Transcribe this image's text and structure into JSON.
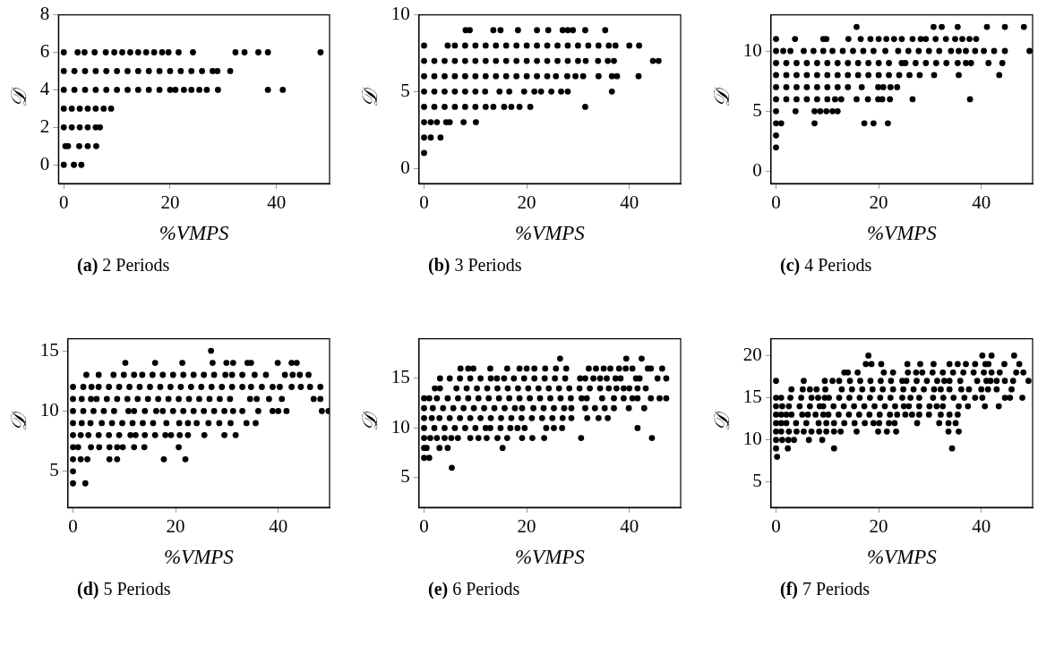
{
  "chart_data": [
    {
      "type": "scatter",
      "title": "(a) 2 Periods",
      "xlabel": "%VMPS",
      "ylabel": "𝒟",
      "xlim": [
        -1,
        50
      ],
      "ylim": [
        -1,
        8
      ],
      "xticks": [
        0,
        20,
        40
      ],
      "yticks": [
        0,
        2,
        4,
        6,
        8
      ],
      "marker": "circle",
      "series": [
        {
          "color": "#000000",
          "x": [
            0,
            2.6,
            3.9,
            5.8,
            7.9,
            9.5,
            11,
            12.5,
            14,
            15.5,
            17,
            18.5,
            19.7,
            21.6,
            24.3,
            32.3,
            34,
            36.6,
            38.4,
            48.3
          ],
          "values": [
            6,
            6,
            6,
            6,
            6,
            6,
            6,
            6,
            6,
            6,
            6,
            6,
            6,
            6,
            6,
            6,
            6,
            6,
            6,
            6
          ]
        },
        {
          "color": "#000000",
          "x": [
            0,
            2,
            4,
            6,
            8,
            10,
            12,
            14,
            16,
            18,
            20,
            22,
            24,
            26,
            28,
            28.9,
            31.3
          ],
          "values": [
            5,
            5,
            5,
            5,
            5,
            5,
            5,
            5,
            5,
            5,
            5,
            5,
            5,
            5,
            5,
            5,
            5
          ]
        },
        {
          "color": "#000000",
          "x": [
            0,
            2,
            4,
            6,
            8,
            10,
            12,
            14,
            16,
            18,
            20,
            21,
            22.6,
            24,
            25.5,
            26.9,
            29,
            38.4,
            41.2
          ],
          "values": [
            4,
            4,
            4,
            4,
            4,
            4,
            4,
            4,
            4,
            4,
            4,
            4,
            4,
            4,
            4,
            4,
            4,
            4,
            4
          ]
        },
        {
          "color": "#000000",
          "x": [
            0,
            1.5,
            3,
            4.5,
            6,
            7.5,
            8.9
          ],
          "values": [
            3,
            3,
            3,
            3,
            3,
            3,
            3
          ]
        },
        {
          "color": "#000000",
          "x": [
            0,
            1.5,
            3,
            4.5,
            6,
            6.8
          ],
          "values": [
            2,
            2,
            2,
            2,
            2,
            2
          ]
        },
        {
          "color": "#000000",
          "x": [
            0.3,
            0.8,
            2.9,
            4.5,
            6.1
          ],
          "values": [
            1,
            1,
            1,
            1,
            1
          ]
        },
        {
          "color": "#000000",
          "x": [
            0,
            1.9,
            3.3
          ],
          "values": [
            0,
            0,
            0
          ]
        }
      ]
    },
    {
      "type": "scatter",
      "title": "(b) 3 Periods",
      "xlabel": "%VMPS",
      "ylabel": "𝒟",
      "xlim": [
        -1,
        50
      ],
      "ylim": [
        -1,
        10
      ],
      "xticks": [
        0,
        20,
        40
      ],
      "yticks": [
        0,
        5,
        10
      ],
      "marker": "circle",
      "series": [
        {
          "color": "#000000",
          "x": [
            8.1,
            8.9,
            13.5,
            14.9,
            18.3,
            22,
            24.2,
            27,
            28,
            29,
            31.4,
            35.3
          ],
          "values": [
            9,
            9,
            9,
            9,
            9,
            9,
            9,
            9,
            9,
            9,
            9,
            9
          ]
        },
        {
          "color": "#000000",
          "x": [
            0,
            4.6,
            6,
            8,
            10,
            12,
            14,
            16,
            18,
            20,
            22,
            24,
            26,
            28,
            30,
            32,
            34,
            36,
            37.3,
            40,
            41.9
          ],
          "values": [
            8,
            8,
            8,
            8,
            8,
            8,
            8,
            8,
            8,
            8,
            8,
            8,
            8,
            8,
            8,
            8,
            8,
            8,
            8,
            8,
            8
          ]
        },
        {
          "color": "#000000",
          "x": [
            0,
            2,
            4,
            6,
            8,
            10,
            12,
            14,
            16,
            18,
            20,
            22,
            24,
            26,
            28,
            30,
            31.5,
            33.9,
            35.8,
            37,
            44.6,
            45.7
          ],
          "values": [
            7,
            7,
            7,
            7,
            7,
            7,
            7,
            7,
            7,
            7,
            7,
            7,
            7,
            7,
            7,
            7,
            7,
            7,
            7,
            7,
            7,
            7
          ]
        },
        {
          "color": "#000000",
          "x": [
            0,
            2,
            4,
            6,
            8,
            10,
            12,
            14,
            16,
            18,
            20,
            22,
            24,
            25.7,
            27.9,
            29.5,
            31,
            34,
            36.6,
            37.6,
            41.8
          ],
          "values": [
            6,
            6,
            6,
            6,
            6,
            6,
            6,
            6,
            6,
            6,
            6,
            6,
            6,
            6,
            6,
            6,
            6,
            6,
            6,
            6,
            6
          ]
        },
        {
          "color": "#000000",
          "x": [
            0,
            2,
            4,
            6,
            8,
            10,
            11.9,
            14.7,
            16.6,
            19.5,
            21.5,
            22.8,
            24.8,
            26.7,
            28,
            36.6
          ],
          "values": [
            5,
            5,
            5,
            5,
            5,
            5,
            5,
            5,
            5,
            5,
            5,
            5,
            5,
            5,
            5,
            5
          ]
        },
        {
          "color": "#000000",
          "x": [
            0,
            2,
            4,
            6,
            8,
            10,
            12,
            13.5,
            15.6,
            17,
            18.6,
            20.7,
            31.4
          ],
          "values": [
            4,
            4,
            4,
            4,
            4,
            4,
            4,
            4,
            4,
            4,
            4,
            4,
            4
          ]
        },
        {
          "color": "#000000",
          "x": [
            0,
            1.3,
            2.5,
            4.3,
            5,
            7.7,
            10.1
          ],
          "values": [
            3,
            3,
            3,
            3,
            3,
            3,
            3
          ]
        },
        {
          "color": "#000000",
          "x": [
            0,
            1.3,
            3.2
          ],
          "values": [
            2,
            2,
            2
          ]
        },
        {
          "color": "#000000",
          "x": [
            0
          ],
          "values": [
            1
          ]
        }
      ]
    },
    {
      "type": "scatter",
      "title": "(c) 4 Periods",
      "xlabel": "%VMPS",
      "ylabel": "𝒟",
      "xlim": [
        -1,
        50
      ],
      "ylim": [
        -1,
        13
      ],
      "xticks": [
        0,
        20,
        40
      ],
      "yticks": [
        0,
        5,
        10
      ],
      "marker": "circle",
      "series": [
        {
          "color": "#000000",
          "x": [
            15.7,
            30.7,
            32.3,
            35.4,
            41.1,
            44.6,
            48.3
          ],
          "values": [
            12,
            12,
            12,
            12,
            12,
            12,
            12
          ]
        },
        {
          "color": "#000000",
          "x": [
            0,
            3.7,
            9.2,
            9.8,
            14.1,
            16.5,
            18.4,
            20,
            21.5,
            23,
            24.5,
            26.6,
            28.2,
            29.2,
            31.1,
            33.1,
            34.9,
            36.3,
            37.7,
            39
          ],
          "values": [
            11,
            11,
            11,
            11,
            11,
            11,
            11,
            11,
            11,
            11,
            11,
            11,
            11,
            11,
            11,
            11,
            11,
            11,
            11,
            11
          ]
        },
        {
          "color": "#000000",
          "x": [
            0,
            1.4,
            2.8,
            5.4,
            7.3,
            9.2,
            11,
            13,
            15,
            17,
            19,
            21.3,
            23.8,
            25.8,
            27.8,
            29.8,
            31.8,
            34.1,
            35.6,
            37,
            38.8,
            40.5,
            42.5,
            44.6,
            49.4
          ],
          "values": [
            10,
            10,
            10,
            10,
            10,
            10,
            10,
            10,
            10,
            10,
            10,
            10,
            10,
            10,
            10,
            10,
            10,
            10,
            10,
            10,
            10,
            10,
            10,
            10,
            10
          ]
        },
        {
          "color": "#000000",
          "x": [
            0,
            2,
            4,
            6,
            8,
            10,
            12,
            14,
            16,
            18,
            20,
            22,
            24.5,
            25.2,
            27.2,
            29.2,
            31.2,
            33.2,
            35.4,
            37,
            38,
            41.4,
            44.1
          ],
          "values": [
            9,
            9,
            9,
            9,
            9,
            9,
            9,
            9,
            9,
            9,
            9,
            9,
            9,
            9,
            9,
            9,
            9,
            9,
            9,
            9,
            9,
            9,
            9
          ]
        },
        {
          "color": "#000000",
          "x": [
            0,
            2,
            4,
            6,
            8,
            10,
            12,
            14,
            16,
            18,
            20,
            22,
            24,
            26,
            28,
            30.8,
            35.6,
            43.5
          ],
          "values": [
            8,
            8,
            8,
            8,
            8,
            8,
            8,
            8,
            8,
            8,
            8,
            8,
            8,
            8,
            8,
            8,
            8,
            8
          ]
        },
        {
          "color": "#000000",
          "x": [
            0,
            2,
            4,
            6,
            8,
            10,
            12,
            14,
            16.7,
            19.9,
            20.9,
            22.3,
            23.6
          ],
          "values": [
            7,
            7,
            7,
            7,
            7,
            7,
            7,
            7,
            7,
            7,
            7,
            7,
            7
          ]
        },
        {
          "color": "#000000",
          "x": [
            0,
            2,
            4,
            6,
            8,
            10,
            11.5,
            12.7,
            15.7,
            17.9,
            19.9,
            20.7,
            22.2,
            26.6,
            37.8
          ],
          "values": [
            6,
            6,
            6,
            6,
            6,
            6,
            6,
            6,
            6,
            6,
            6,
            6,
            6,
            6,
            6
          ]
        },
        {
          "color": "#000000",
          "x": [
            0,
            3.8,
            7.5,
            8.6,
            9.8,
            11,
            12
          ],
          "values": [
            5,
            5,
            5,
            5,
            5,
            5,
            5
          ]
        },
        {
          "color": "#000000",
          "x": [
            0,
            1,
            7.5,
            17.2,
            19,
            21.8
          ],
          "values": [
            4,
            4,
            4,
            4,
            4,
            4
          ]
        },
        {
          "color": "#000000",
          "x": [
            0,
            0
          ],
          "values": [
            3,
            2
          ]
        }
      ]
    },
    {
      "type": "scatter",
      "title": "(d) 5 Periods",
      "xlabel": "%VMPS",
      "ylabel": "𝒟",
      "xlim": [
        -1,
        50
      ],
      "ylim": [
        2,
        16
      ],
      "xticks": [
        0,
        20,
        40
      ],
      "yticks": [
        5,
        10,
        15
      ],
      "marker": "circle",
      "series": [
        {
          "color": "#000000",
          "x": [
            26.9
          ],
          "values": [
            15
          ]
        },
        {
          "color": "#000000",
          "x": [
            10.2,
            16,
            21.3,
            27.2,
            29.9,
            31.2,
            34,
            34.7,
            39.9,
            42.6,
            43.6
          ],
          "values": [
            14,
            14,
            14,
            14,
            14,
            14,
            14,
            14,
            14,
            14,
            14
          ]
        },
        {
          "color": "#000000",
          "x": [
            2.6,
            5,
            7.9,
            9.9,
            11.9,
            13.5,
            15.5,
            17.5,
            19.5,
            21.5,
            23.5,
            25.5,
            27.5,
            29.7,
            31,
            33,
            35.4,
            37.6,
            41.3,
            42.8,
            44.2,
            45.9
          ],
          "values": [
            13,
            13,
            13,
            13,
            13,
            13,
            13,
            13,
            13,
            13,
            13,
            13,
            13,
            13,
            13,
            13,
            13,
            13,
            13,
            13,
            13,
            13
          ]
        },
        {
          "color": "#000000",
          "x": [
            0,
            2,
            3.6,
            5,
            7,
            9,
            11,
            13,
            15,
            17,
            19,
            21,
            23,
            25,
            27,
            29,
            31,
            33,
            34.7,
            36.8,
            38.9,
            40.3,
            42.6,
            44.4,
            46.2,
            48.2
          ],
          "values": [
            12,
            12,
            12,
            12,
            12,
            12,
            12,
            12,
            12,
            12,
            12,
            12,
            12,
            12,
            12,
            12,
            12,
            12,
            12,
            12,
            12,
            12,
            12,
            12,
            12,
            12
          ]
        },
        {
          "color": "#000000",
          "x": [
            0,
            1.7,
            3.5,
            4.6,
            6.6,
            8.6,
            10.6,
            12.6,
            14.6,
            16.6,
            18.6,
            20.6,
            22.6,
            24.6,
            26.6,
            28.6,
            30.6,
            34.5,
            35.8,
            38.2,
            40.7,
            46.9,
            48.2
          ],
          "values": [
            11,
            11,
            11,
            11,
            11,
            11,
            11,
            11,
            11,
            11,
            11,
            11,
            11,
            11,
            11,
            11,
            11,
            11,
            11,
            11,
            11,
            11,
            11
          ]
        },
        {
          "color": "#000000",
          "x": [
            0,
            2,
            4,
            6,
            8,
            10.8,
            11.9,
            14,
            16.2,
            17.5,
            19.5,
            21.5,
            23.5,
            25.5,
            27.5,
            29.5,
            31.2,
            33,
            36.1,
            38.9,
            40,
            41.6,
            48.5,
            49.8
          ],
          "values": [
            10,
            10,
            10,
            10,
            10,
            10,
            10,
            10,
            10,
            10,
            10,
            10,
            10,
            10,
            10,
            10,
            10,
            10,
            10,
            10,
            10,
            10,
            10,
            10
          ]
        },
        {
          "color": "#000000",
          "x": [
            0,
            1.7,
            3.4,
            5.6,
            7.6,
            9.6,
            11.6,
            13.6,
            15.6,
            18.2,
            20.7,
            22.4,
            24.1,
            26.4,
            28.5,
            30.7,
            33.8,
            35.6
          ],
          "values": [
            9,
            9,
            9,
            9,
            9,
            9,
            9,
            9,
            9,
            9,
            9,
            9,
            9,
            9,
            9,
            9,
            9,
            9
          ]
        },
        {
          "color": "#000000",
          "x": [
            0,
            1.5,
            3,
            5,
            7,
            9,
            11.2,
            12.2,
            14,
            16,
            18,
            19.1,
            20.8,
            22.4,
            25.6,
            29.5,
            31.7
          ],
          "values": [
            8,
            8,
            8,
            8,
            8,
            8,
            8,
            8,
            8,
            8,
            8,
            8,
            8,
            8,
            8,
            8,
            8
          ]
        },
        {
          "color": "#000000",
          "x": [
            0,
            1,
            3.5,
            5.1,
            7.1,
            8.6,
            9.7,
            11.9,
            13.9,
            20.6
          ],
          "values": [
            7,
            7,
            7,
            7,
            7,
            7,
            7,
            7,
            7,
            7
          ]
        },
        {
          "color": "#000000",
          "x": [
            0,
            1.5,
            2.8,
            7.1,
            8.6,
            17.7,
            21.9
          ],
          "values": [
            6,
            6,
            6,
            6,
            6,
            6,
            6
          ]
        },
        {
          "color": "#000000",
          "x": [
            0,
            0,
            2.4
          ],
          "values": [
            5,
            4,
            4
          ]
        }
      ]
    },
    {
      "type": "scatter",
      "title": "(e) 6 Periods",
      "xlabel": "%VMPS",
      "ylabel": "𝒟",
      "xlim": [
        -1,
        50
      ],
      "ylim": [
        2,
        19
      ],
      "xticks": [
        0,
        20,
        40
      ],
      "yticks": [
        5,
        10,
        15
      ],
      "marker": "circle",
      "series": [
        {
          "color": "#000000",
          "x": [
            26.5,
            39.4,
            42.4
          ],
          "values": [
            17,
            17,
            17
          ]
        },
        {
          "color": "#000000",
          "x": [
            7.1,
            8.6,
            9.6,
            12.9,
            16.2,
            18.6,
            20,
            21.5,
            23.6,
            25.7,
            27.7,
            32.1,
            33.5,
            35,
            36.3,
            38,
            39.3,
            40.6,
            43.6,
            44.2,
            46.4
          ],
          "values": [
            16,
            16,
            16,
            16,
            16,
            16,
            16,
            16,
            16,
            16,
            16,
            16,
            16,
            16,
            16,
            16,
            16,
            16,
            16,
            16,
            16
          ]
        },
        {
          "color": "#000000",
          "x": [
            3.1,
            5,
            7,
            9,
            11,
            13,
            14.2,
            15.6,
            17.5,
            19.5,
            21.5,
            23.5,
            25.5,
            27.5,
            30.4,
            31.4,
            33,
            34.3,
            35.6,
            37.3,
            38.3,
            41.3,
            42,
            45.5,
            47.2
          ],
          "values": [
            15,
            15,
            15,
            15,
            15,
            15,
            15,
            15,
            15,
            15,
            15,
            15,
            15,
            15,
            15,
            15,
            15,
            15,
            15,
            15,
            15,
            15,
            15,
            15,
            15
          ]
        },
        {
          "color": "#000000",
          "x": [
            2.1,
            3.1,
            6.3,
            8.3,
            10.3,
            12.3,
            14.3,
            16.3,
            18.3,
            20.3,
            22.3,
            24.3,
            26.3,
            28.3,
            30.3,
            32.3,
            34.3,
            36,
            37.5,
            38.9,
            40,
            41.6,
            43.2
          ],
          "values": [
            14,
            14,
            14,
            14,
            14,
            14,
            14,
            14,
            14,
            14,
            14,
            14,
            14,
            14,
            14,
            14,
            14,
            14,
            14,
            14,
            14,
            14,
            14
          ]
        },
        {
          "color": "#000000",
          "x": [
            0,
            1,
            2.5,
            4.6,
            6.6,
            8.6,
            10.6,
            12.6,
            14.6,
            16.6,
            18.6,
            20.6,
            22.6,
            24.6,
            26.6,
            28.6,
            30.7,
            31.7,
            34.7,
            37,
            38.9,
            40.6,
            41.6,
            44.2,
            45.9,
            47.2
          ],
          "values": [
            13,
            13,
            13,
            13,
            13,
            13,
            13,
            13,
            13,
            13,
            13,
            13,
            13,
            13,
            13,
            13,
            13,
            13,
            13,
            13,
            13,
            13,
            13,
            13,
            13,
            13
          ]
        },
        {
          "color": "#000000",
          "x": [
            0,
            1.7,
            3.7,
            5.7,
            7.7,
            9.7,
            11.7,
            13.7,
            15.7,
            17.7,
            19.1,
            21.3,
            23.3,
            25.3,
            27.3,
            28.7,
            31.4,
            33.3,
            35.2,
            37,
            39.9,
            42.9
          ],
          "values": [
            12,
            12,
            12,
            12,
            12,
            12,
            12,
            12,
            12,
            12,
            12,
            12,
            12,
            12,
            12,
            12,
            12,
            12,
            12,
            12,
            12,
            12
          ]
        },
        {
          "color": "#000000",
          "x": [
            0,
            1.5,
            3,
            5,
            7,
            9,
            11,
            13,
            15,
            17,
            19,
            21,
            23,
            25,
            27,
            28.7,
            31.8,
            34,
            35.8
          ],
          "values": [
            11,
            11,
            11,
            11,
            11,
            11,
            11,
            11,
            11,
            11,
            11,
            11,
            11,
            11,
            11,
            11,
            11,
            11,
            11
          ]
        },
        {
          "color": "#000000",
          "x": [
            0,
            2,
            4,
            6,
            8,
            10,
            12,
            12.9,
            14.9,
            16.8,
            18.2,
            19.6,
            23.8,
            25.3,
            26.9,
            41.6
          ],
          "values": [
            10,
            10,
            10,
            10,
            10,
            10,
            10,
            10,
            10,
            10,
            10,
            10,
            10,
            10,
            10,
            10
          ]
        },
        {
          "color": "#000000",
          "x": [
            0,
            1.2,
            2.5,
            4,
            5.3,
            6.6,
            9,
            10.6,
            12.2,
            14.3,
            16.2,
            19.1,
            21.1,
            23.4,
            30.6,
            44.4
          ],
          "values": [
            9,
            9,
            9,
            9,
            9,
            9,
            9,
            9,
            9,
            9,
            9,
            9,
            9,
            9,
            9,
            9
          ]
        },
        {
          "color": "#000000",
          "x": [
            0,
            0.5,
            3,
            4.6,
            15.3
          ],
          "values": [
            8,
            8,
            8,
            8,
            8
          ]
        },
        {
          "color": "#000000",
          "x": [
            0,
            1,
            5.4
          ],
          "values": [
            7,
            7,
            6
          ]
        }
      ]
    },
    {
      "type": "scatter",
      "title": "(f) 7 Periods",
      "xlabel": "%VMPS",
      "ylabel": "𝒟",
      "xlim": [
        -1,
        50
      ],
      "ylim": [
        2,
        22
      ],
      "xticks": [
        0,
        20,
        40
      ],
      "yticks": [
        5,
        10,
        15,
        20
      ],
      "marker": "circle",
      "series": [
        {
          "color": "#000000",
          "x": [
            18,
            40.2,
            42,
            46.4
          ],
          "values": [
            20,
            20,
            20,
            20
          ]
        },
        {
          "color": "#000000",
          "x": [
            17.5,
            18.6,
            20.5,
            25.6,
            28.1,
            30.7,
            33.8,
            35.4,
            37,
            38.8,
            40.8,
            41.4,
            44.5,
            47.4
          ],
          "values": [
            19,
            19,
            19,
            19,
            19,
            19,
            19,
            19,
            19,
            19,
            19,
            19,
            19,
            19
          ]
        },
        {
          "color": "#000000",
          "x": [
            13.3,
            14,
            15.9,
            21,
            22.8,
            25.7,
            27.3,
            28.5,
            30.5,
            32.5,
            34.5,
            36.5,
            38.5,
            40.5,
            42,
            43.6,
            46.8,
            48.2
          ],
          "values": [
            18,
            18,
            18,
            18,
            18,
            18,
            18,
            18,
            18,
            18,
            18,
            18,
            18,
            18,
            18,
            18,
            18,
            18
          ]
        },
        {
          "color": "#000000",
          "x": [
            0,
            5.4,
            9.5,
            11,
            12.3,
            14.4,
            16.4,
            18.4,
            20.4,
            22.4,
            24.6,
            25.4,
            27.4,
            29.4,
            31.4,
            32.8,
            33.8,
            35.9,
            39.2,
            41,
            41.8,
            43,
            44.6,
            46.2,
            49.2
          ],
          "values": [
            17,
            17,
            17,
            17,
            17,
            17,
            17,
            17,
            17,
            17,
            17,
            17,
            17,
            17,
            17,
            17,
            17,
            17,
            17,
            17,
            17,
            17,
            17,
            17,
            17
          ]
        },
        {
          "color": "#000000",
          "x": [
            3,
            5.2,
            6.6,
            7.9,
            9.6,
            12.8,
            14.8,
            16.8,
            18.8,
            20.8,
            22.8,
            24.8,
            26.8,
            28.8,
            30.8,
            32.1,
            33.8,
            36.1,
            37.6,
            40,
            41.3,
            43,
            45.9
          ],
          "values": [
            16,
            16,
            16,
            16,
            16,
            16,
            16,
            16,
            16,
            16,
            16,
            16,
            16,
            16,
            16,
            16,
            16,
            16,
            16,
            16,
            16,
            16,
            16
          ]
        },
        {
          "color": "#000000",
          "x": [
            0,
            1,
            2.8,
            4.9,
            6.9,
            8.2,
            9.5,
            10.3,
            12.3,
            14.3,
            16.3,
            18.3,
            20.3,
            22.3,
            24.6,
            26.2,
            27.9,
            30.6,
            32.6,
            34.6,
            36.7,
            38.8,
            40.2,
            44.6,
            45.6,
            48
          ],
          "values": [
            15,
            15,
            15,
            15,
            15,
            15,
            15,
            15,
            15,
            15,
            15,
            15,
            15,
            15,
            15,
            15,
            15,
            15,
            15,
            15,
            15,
            15,
            15,
            15,
            15,
            15
          ]
        },
        {
          "color": "#000000",
          "x": [
            0,
            1.2,
            2.5,
            4.6,
            6.6,
            8.5,
            9.2,
            11.2,
            13.2,
            15.2,
            17.2,
            19.2,
            21.2,
            23.2,
            24.9,
            25.9,
            27.9,
            29.9,
            31.3,
            32.5,
            35.6,
            37.4,
            40.7,
            43.4
          ],
          "values": [
            14,
            14,
            14,
            14,
            14,
            14,
            14,
            14,
            14,
            14,
            14,
            14,
            14,
            14,
            14,
            14,
            14,
            14,
            14,
            14,
            14,
            14,
            14,
            14
          ]
        },
        {
          "color": "#000000",
          "x": [
            0,
            1,
            2,
            3,
            5.1,
            6.2,
            7.7,
            9.2,
            10.2,
            12.2,
            14.2,
            16.2,
            18.2,
            20.2,
            22.2,
            23.6,
            25.2,
            26.5,
            27.9,
            29.8,
            32.1,
            33.8,
            35.4
          ],
          "values": [
            13,
            13,
            13,
            13,
            13,
            13,
            13,
            13,
            13,
            13,
            13,
            13,
            13,
            13,
            13,
            13,
            13,
            13,
            13,
            13,
            13,
            13,
            13
          ]
        },
        {
          "color": "#000000",
          "x": [
            0,
            1,
            2,
            3.9,
            5.9,
            8.3,
            9.8,
            11.3,
            13.3,
            15.3,
            17.3,
            19,
            20.1,
            22,
            23.1,
            27.5,
            31.8,
            33.6,
            35
          ],
          "values": [
            12,
            12,
            12,
            12,
            12,
            12,
            12,
            12,
            12,
            12,
            12,
            12,
            12,
            12,
            12,
            12,
            12,
            12,
            12
          ]
        },
        {
          "color": "#000000",
          "x": [
            0,
            1,
            2.5,
            4,
            5.4,
            6.9,
            8.4,
            9.8,
            11.3,
            12.6,
            15.7,
            19.9,
            21.6,
            23.4,
            33.6,
            35.6
          ],
          "values": [
            11,
            11,
            11,
            11,
            11,
            11,
            11,
            11,
            11,
            11,
            11,
            11,
            11,
            11,
            11,
            11
          ]
        },
        {
          "color": "#000000",
          "x": [
            0,
            1.2,
            2.4,
            3.5,
            6.4,
            9
          ],
          "values": [
            10,
            10,
            10,
            10,
            10,
            10
          ]
        },
        {
          "color": "#000000",
          "x": [
            0,
            2.3,
            11.3,
            34.3,
            0.2
          ],
          "values": [
            9,
            9,
            9,
            9,
            8
          ]
        }
      ]
    }
  ]
}
